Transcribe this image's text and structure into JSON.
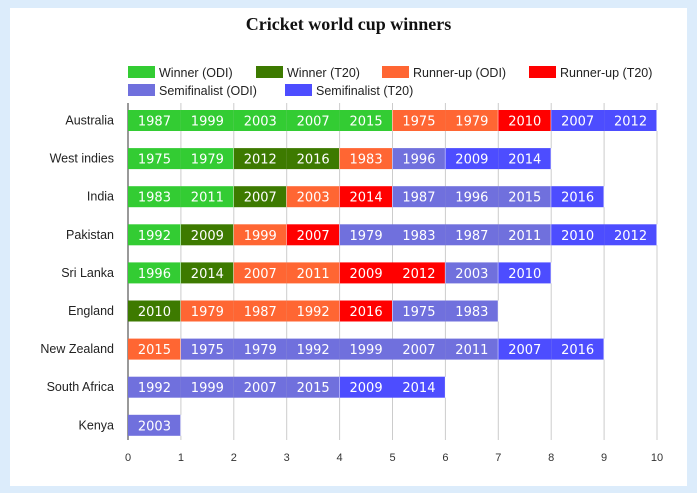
{
  "chart_data": {
    "type": "bar",
    "orientation": "horizontal",
    "stacked": true,
    "title": "Cricket world cup winners",
    "xlim": [
      0,
      10
    ],
    "xticks": [
      0,
      1,
      2,
      3,
      4,
      5,
      6,
      7,
      8,
      9,
      10
    ],
    "grid": true,
    "legend_position": "top",
    "series_defs": [
      {
        "key": "w_odi",
        "name": "Winner (ODI)",
        "color": "#33cc33"
      },
      {
        "key": "w_t20",
        "name": "Winner (T20)",
        "color": "#3d7a00"
      },
      {
        "key": "r_odi",
        "name": "Runner-up (ODI)",
        "color": "#ff6633"
      },
      {
        "key": "r_t20",
        "name": "Runner-up (T20)",
        "color": "#ff0000"
      },
      {
        "key": "s_odi",
        "name": "Semifinalist (ODI)",
        "color": "#7070dd"
      },
      {
        "key": "s_t20",
        "name": "Semifinalist (T20)",
        "color": "#4d4dff"
      }
    ],
    "categories": [
      {
        "name": "Australia",
        "segments": [
          {
            "series": "w_odi",
            "years": [
              "1987",
              "1999",
              "2003",
              "2007",
              "2015"
            ]
          },
          {
            "series": "r_odi",
            "years": [
              "1975",
              "1979"
            ]
          },
          {
            "series": "r_t20",
            "years": [
              "2010"
            ]
          },
          {
            "series": "s_t20",
            "years": [
              "2007",
              "2012"
            ]
          }
        ]
      },
      {
        "name": "West indies",
        "segments": [
          {
            "series": "w_odi",
            "years": [
              "1975",
              "1979"
            ]
          },
          {
            "series": "w_t20",
            "years": [
              "2012",
              "2016"
            ]
          },
          {
            "series": "r_odi",
            "years": [
              "1983"
            ]
          },
          {
            "series": "s_odi",
            "years": [
              "1996"
            ]
          },
          {
            "series": "s_t20",
            "years": [
              "2009",
              "2014"
            ]
          }
        ]
      },
      {
        "name": "India",
        "segments": [
          {
            "series": "w_odi",
            "years": [
              "1983",
              "2011"
            ]
          },
          {
            "series": "w_t20",
            "years": [
              "2007"
            ]
          },
          {
            "series": "r_odi",
            "years": [
              "2003"
            ]
          },
          {
            "series": "r_t20",
            "years": [
              "2014"
            ]
          },
          {
            "series": "s_odi",
            "years": [
              "1987",
              "1996",
              "2015"
            ]
          },
          {
            "series": "s_t20",
            "years": [
              "2016"
            ]
          }
        ]
      },
      {
        "name": "Pakistan",
        "segments": [
          {
            "series": "w_odi",
            "years": [
              "1992"
            ]
          },
          {
            "series": "w_t20",
            "years": [
              "2009"
            ]
          },
          {
            "series": "r_odi",
            "years": [
              "1999"
            ]
          },
          {
            "series": "r_t20",
            "years": [
              "2007"
            ]
          },
          {
            "series": "s_odi",
            "years": [
              "1979",
              "1983",
              "1987",
              "2011"
            ]
          },
          {
            "series": "s_t20",
            "years": [
              "2010",
              "2012"
            ]
          }
        ]
      },
      {
        "name": "Sri Lanka",
        "segments": [
          {
            "series": "w_odi",
            "years": [
              "1996"
            ]
          },
          {
            "series": "w_t20",
            "years": [
              "2014"
            ]
          },
          {
            "series": "r_odi",
            "years": [
              "2007",
              "2011"
            ]
          },
          {
            "series": "r_t20",
            "years": [
              "2009",
              "2012"
            ]
          },
          {
            "series": "s_odi",
            "years": [
              "2003"
            ]
          },
          {
            "series": "s_t20",
            "years": [
              "2010"
            ]
          }
        ]
      },
      {
        "name": "England",
        "segments": [
          {
            "series": "w_t20",
            "years": [
              "2010"
            ]
          },
          {
            "series": "r_odi",
            "years": [
              "1979",
              "1987",
              "1992"
            ]
          },
          {
            "series": "r_t20",
            "years": [
              "2016"
            ]
          },
          {
            "series": "s_odi",
            "years": [
              "1975",
              "1983"
            ]
          }
        ]
      },
      {
        "name": "New Zealand",
        "segments": [
          {
            "series": "r_odi",
            "years": [
              "2015"
            ]
          },
          {
            "series": "s_odi",
            "years": [
              "1975",
              "1979",
              "1992",
              "1999",
              "2007",
              "2011"
            ]
          },
          {
            "series": "s_t20",
            "years": [
              "2007",
              "2016"
            ]
          }
        ]
      },
      {
        "name": "South Africa",
        "segments": [
          {
            "series": "s_odi",
            "years": [
              "1992",
              "1999",
              "2007",
              "2015"
            ]
          },
          {
            "series": "s_t20",
            "years": [
              "2009",
              "2014"
            ]
          }
        ]
      },
      {
        "name": "Kenya",
        "segments": [
          {
            "series": "s_odi",
            "years": [
              "2003"
            ]
          }
        ]
      }
    ]
  }
}
